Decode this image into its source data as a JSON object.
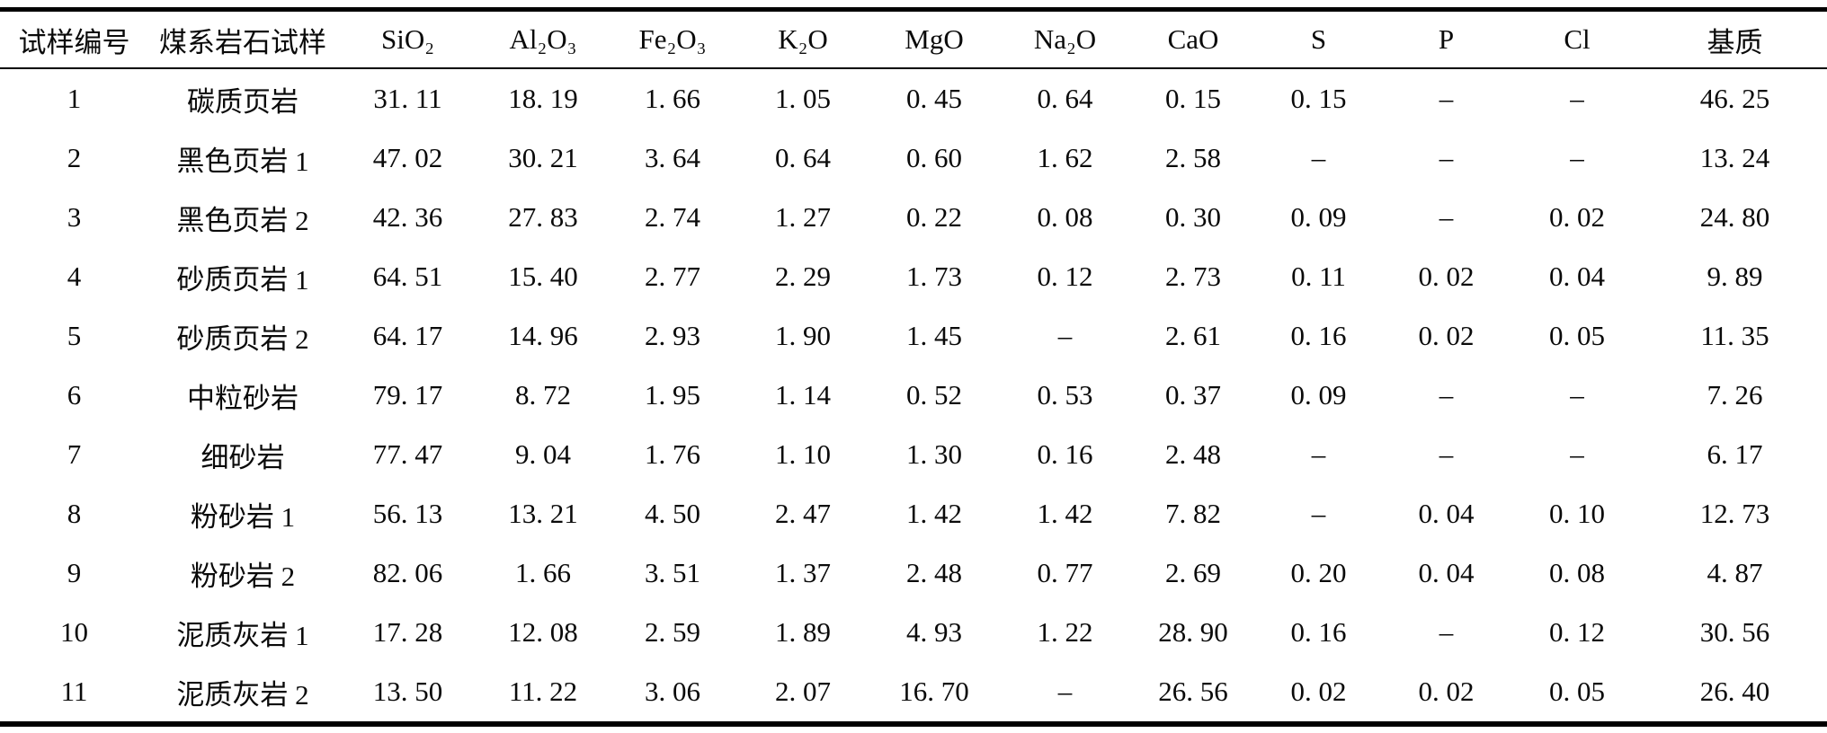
{
  "chart_data": {
    "type": "table",
    "layout": "three-line table (thick top rule, thin header rule, thick bottom rule)",
    "columns": [
      "试样编号",
      "煤系岩石试样",
      "SiO₂",
      "Al₂O₃",
      "Fe₂O₃",
      "K₂O",
      "MgO",
      "Na₂O",
      "CaO",
      "S",
      "P",
      "Cl",
      "基质"
    ],
    "column_keys": [
      "sample-no",
      "rock-sample",
      "sio2",
      "al2o3",
      "fe2o3",
      "k2o",
      "mgo",
      "na2o",
      "cao",
      "s",
      "p",
      "cl",
      "matrix"
    ],
    "rows": [
      [
        "1",
        "碳质页岩",
        "31. 11",
        "18. 19",
        "1. 66",
        "1. 05",
        "0. 45",
        "0. 64",
        "0. 15",
        "0. 15",
        "–",
        "–",
        "46. 25"
      ],
      [
        "2",
        "黑色页岩 1",
        "47. 02",
        "30. 21",
        "3. 64",
        "0. 64",
        "0. 60",
        "1. 62",
        "2. 58",
        "–",
        "–",
        "–",
        "13. 24"
      ],
      [
        "3",
        "黑色页岩 2",
        "42. 36",
        "27. 83",
        "2. 74",
        "1. 27",
        "0. 22",
        "0. 08",
        "0. 30",
        "0. 09",
        "–",
        "0. 02",
        "24. 80"
      ],
      [
        "4",
        "砂质页岩 1",
        "64. 51",
        "15. 40",
        "2. 77",
        "2. 29",
        "1. 73",
        "0. 12",
        "2. 73",
        "0. 11",
        "0. 02",
        "0. 04",
        "9. 89"
      ],
      [
        "5",
        "砂质页岩 2",
        "64. 17",
        "14. 96",
        "2. 93",
        "1. 90",
        "1. 45",
        "–",
        "2. 61",
        "0. 16",
        "0. 02",
        "0. 05",
        "11. 35"
      ],
      [
        "6",
        "中粒砂岩",
        "79. 17",
        "8. 72",
        "1. 95",
        "1. 14",
        "0. 52",
        "0. 53",
        "0. 37",
        "0. 09",
        "–",
        "–",
        "7. 26"
      ],
      [
        "7",
        "细砂岩",
        "77. 47",
        "9. 04",
        "1. 76",
        "1. 10",
        "1. 30",
        "0. 16",
        "2. 48",
        "–",
        "–",
        "–",
        "6. 17"
      ],
      [
        "8",
        "粉砂岩 1",
        "56. 13",
        "13. 21",
        "4. 50",
        "2. 47",
        "1. 42",
        "1. 42",
        "7. 82",
        "–",
        "0. 04",
        "0. 10",
        "12. 73"
      ],
      [
        "9",
        "粉砂岩 2",
        "82. 06",
        "1. 66",
        "3. 51",
        "1. 37",
        "2. 48",
        "0. 77",
        "2. 69",
        "0. 20",
        "0. 04",
        "0. 08",
        "4. 87"
      ],
      [
        "10",
        "泥质灰岩 1",
        "17. 28",
        "12. 08",
        "2. 59",
        "1. 89",
        "4. 93",
        "1. 22",
        "28. 90",
        "0. 16",
        "–",
        "0. 12",
        "30. 56"
      ],
      [
        "11",
        "泥质灰岩 2",
        "13. 50",
        "11. 22",
        "3. 06",
        "2. 07",
        "16. 70",
        "–",
        "26. 56",
        "0. 02",
        "0. 02",
        "0. 05",
        "26. 40"
      ]
    ],
    "missing_value_symbol": "–"
  },
  "colors": {
    "background": "#ffffff",
    "text": "#0a0a0a",
    "rule": "#000000"
  }
}
